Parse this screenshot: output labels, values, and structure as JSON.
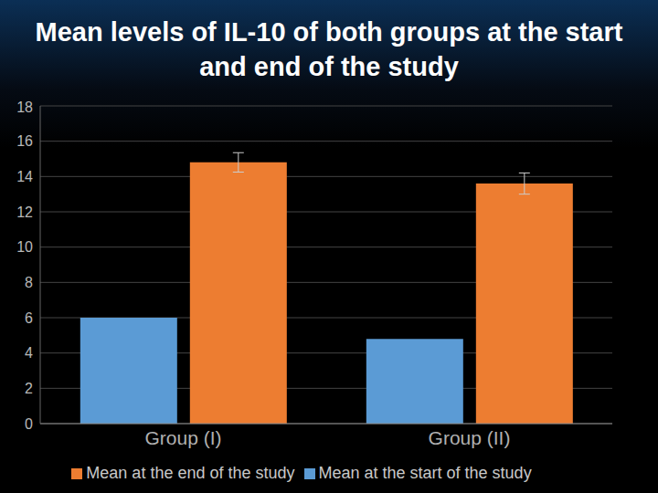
{
  "chart_data": {
    "type": "bar",
    "title": "Mean levels of IL-10 of both groups at the start and end of the study",
    "categories": [
      "Group (I)",
      "Group (II)"
    ],
    "series": [
      {
        "name": "Mean at the start of the study",
        "color": "#5b9bd5",
        "values": [
          6,
          4.8
        ]
      },
      {
        "name": "Mean at the end of the study",
        "color": "#ed7d31",
        "values": [
          14.8,
          13.6
        ],
        "errors": [
          0.55,
          0.6
        ]
      }
    ],
    "ylim": [
      0,
      18
    ],
    "yticks": [
      0,
      2,
      4,
      6,
      8,
      10,
      12,
      14,
      16,
      18
    ],
    "grid": true,
    "legend": "bottom"
  }
}
